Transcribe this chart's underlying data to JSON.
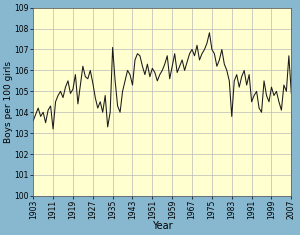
{
  "years": [
    1903,
    1904,
    1905,
    1906,
    1907,
    1908,
    1909,
    1910,
    1911,
    1912,
    1913,
    1914,
    1915,
    1916,
    1917,
    1918,
    1919,
    1920,
    1921,
    1922,
    1923,
    1924,
    1925,
    1926,
    1927,
    1928,
    1929,
    1930,
    1931,
    1932,
    1933,
    1934,
    1935,
    1936,
    1937,
    1938,
    1939,
    1940,
    1941,
    1942,
    1943,
    1944,
    1945,
    1946,
    1947,
    1948,
    1949,
    1950,
    1951,
    1952,
    1953,
    1954,
    1955,
    1956,
    1957,
    1958,
    1959,
    1960,
    1961,
    1962,
    1963,
    1964,
    1965,
    1966,
    1967,
    1968,
    1969,
    1970,
    1971,
    1972,
    1973,
    1974,
    1975,
    1976,
    1977,
    1978,
    1979,
    1980,
    1981,
    1982,
    1983,
    1984,
    1985,
    1986,
    1987,
    1988,
    1989,
    1990,
    1991,
    1992,
    1993,
    1994,
    1995,
    1996,
    1997,
    1998,
    1999,
    2000,
    2001,
    2002,
    2003,
    2004,
    2005,
    2006,
    2007
  ],
  "values": [
    103.6,
    103.9,
    104.2,
    103.8,
    104.0,
    103.5,
    104.1,
    104.3,
    103.2,
    104.5,
    104.8,
    105.0,
    104.7,
    105.2,
    105.5,
    104.9,
    105.1,
    105.8,
    104.4,
    105.3,
    106.2,
    105.7,
    105.6,
    106.0,
    105.4,
    104.7,
    104.2,
    104.5,
    104.0,
    104.8,
    103.3,
    104.0,
    107.1,
    105.5,
    104.3,
    104.0,
    105.0,
    105.5,
    106.0,
    105.8,
    105.3,
    106.5,
    106.8,
    106.7,
    106.2,
    105.8,
    106.3,
    105.7,
    106.1,
    105.9,
    105.5,
    105.8,
    106.0,
    106.3,
    106.7,
    105.6,
    106.2,
    106.8,
    105.9,
    106.2,
    106.5,
    106.0,
    106.4,
    106.8,
    107.0,
    106.7,
    107.2,
    106.5,
    106.8,
    107.0,
    107.3,
    107.8,
    107.0,
    106.8,
    106.2,
    106.5,
    107.0,
    106.3,
    106.0,
    105.5,
    103.8,
    105.5,
    105.8,
    105.2,
    105.7,
    106.0,
    105.3,
    105.8,
    104.5,
    104.8,
    105.0,
    104.2,
    104.0,
    105.5,
    104.8,
    104.5,
    105.2,
    104.8,
    105.0,
    104.5,
    104.1,
    105.3,
    105.0,
    106.7,
    104.9
  ],
  "xlim": [
    1903,
    2007
  ],
  "ylim": [
    100,
    109
  ],
  "yticks": [
    100,
    101,
    102,
    103,
    104,
    105,
    106,
    107,
    108,
    109
  ],
  "xticks": [
    1903,
    1911,
    1919,
    1927,
    1935,
    1943,
    1951,
    1959,
    1967,
    1975,
    1983,
    1991,
    1999,
    2007
  ],
  "xlabel": "Year",
  "ylabel": "Boys per 100 girls",
  "line_color": "#1a1a1a",
  "bg_color": "#ffffd0",
  "grid_color": "#bbbbbb",
  "border_color": "#88b8d0",
  "tick_fontsize": 5.5,
  "label_fontsize": 6.5,
  "xlabel_fontsize": 7.0
}
